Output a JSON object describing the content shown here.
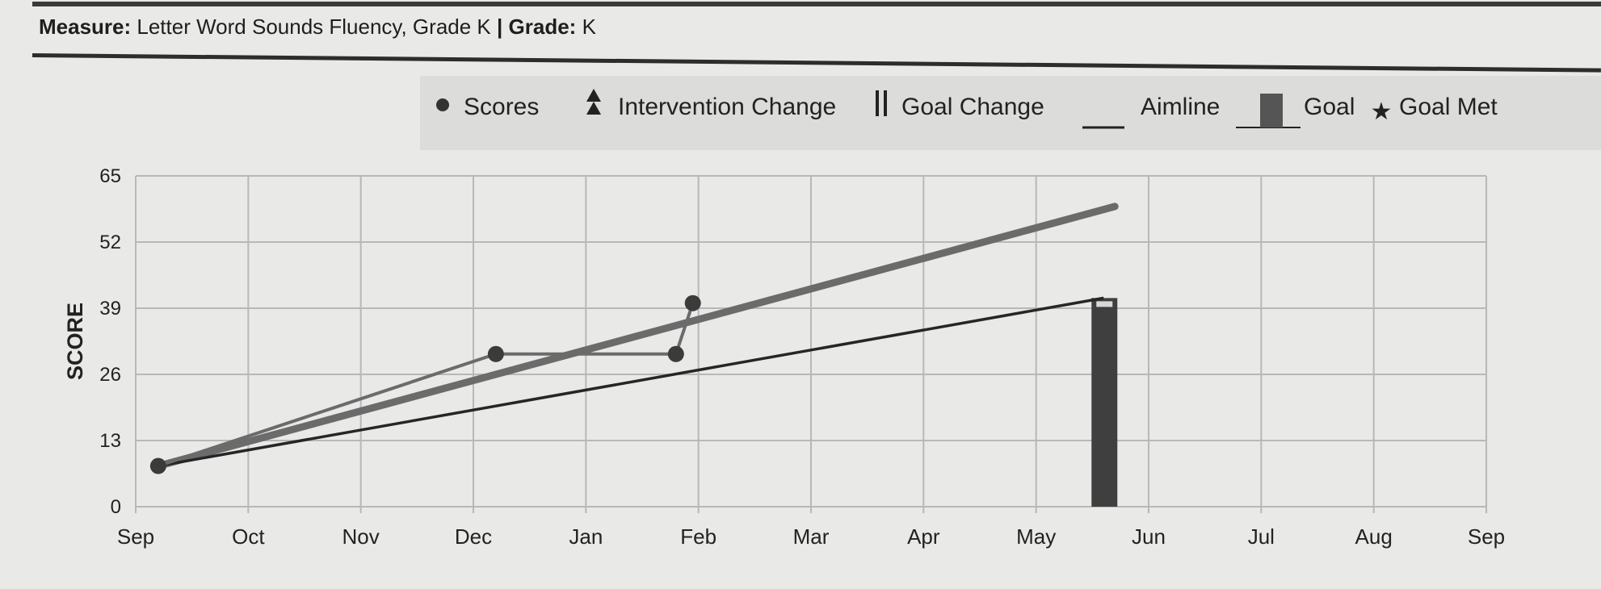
{
  "header": {
    "measure_label": "Measure:",
    "measure_value": "Letter Word Sounds Fluency, Grade K",
    "divider": "|",
    "grade_label": "Grade:",
    "grade_value": "K"
  },
  "legend": [
    {
      "key": "scores",
      "label": "Scores",
      "icon": "dot-icon"
    },
    {
      "key": "intervention",
      "label": "Intervention Change",
      "icon": "double-triangle-icon"
    },
    {
      "key": "goal_change",
      "label": "Goal Change",
      "icon": "double-bar-icon"
    },
    {
      "key": "aimline",
      "label": "Aimline",
      "icon": "line-icon"
    },
    {
      "key": "goal",
      "label": "Goal",
      "icon": "bar-icon"
    },
    {
      "key": "goal_met",
      "label": "Goal Met",
      "icon": "star-icon"
    }
  ],
  "colors": {
    "scores": "#3b3b3b",
    "trend": "#6b6b6b",
    "aimline": "#262626",
    "goal": "#3f3f3f",
    "grid": "#b8b8b6"
  },
  "chart_data": {
    "type": "line",
    "ylabel": "SCORE",
    "xlabel": "",
    "y_ticks": [
      0,
      13,
      26,
      39,
      52,
      65
    ],
    "ylim": [
      0,
      65
    ],
    "x_ticks": [
      "Sep",
      "Oct",
      "Nov",
      "Dec",
      "Jan",
      "Feb",
      "Mar",
      "Apr",
      "May",
      "Jun",
      "Jul",
      "Aug",
      "Sep"
    ],
    "xlim": [
      0,
      12
    ],
    "grid": true,
    "legend_position": "top",
    "series": [
      {
        "key": "scores",
        "type": "line-markers",
        "points": [
          {
            "x": 0.2,
            "y": 8
          },
          {
            "x": 3.2,
            "y": 30
          },
          {
            "x": 4.8,
            "y": 30
          },
          {
            "x": 4.95,
            "y": 40
          }
        ]
      },
      {
        "key": "trend",
        "type": "line",
        "points": [
          {
            "x": 0.2,
            "y": 8
          },
          {
            "x": 8.7,
            "y": 59
          }
        ]
      },
      {
        "key": "aimline",
        "type": "line",
        "points": [
          {
            "x": 0.2,
            "y": 8
          },
          {
            "x": 8.6,
            "y": 41
          }
        ]
      },
      {
        "key": "goal",
        "type": "bar",
        "x": 8.6,
        "y": 41
      }
    ]
  }
}
